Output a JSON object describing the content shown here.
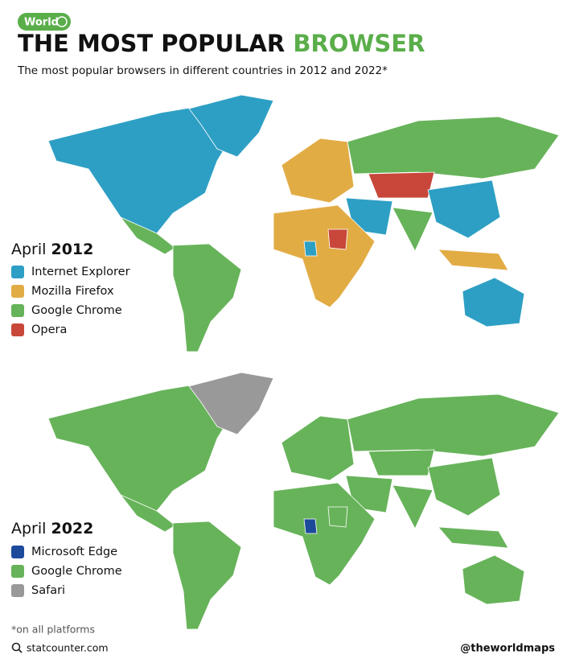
{
  "header": {
    "badge": "World",
    "title_main": "THE MOST POPULAR",
    "title_accent": "BROWSER",
    "accent_color": "#5aae4a",
    "subtitle": "The most popular browsers in different countries in 2012 and 2022*"
  },
  "maps": [
    {
      "legend_prefix": "April",
      "legend_year": "2012",
      "legend": [
        {
          "label": "Internet Explorer",
          "color": "#2e9fc4"
        },
        {
          "label": "Mozilla Firefox",
          "color": "#e2ac45"
        },
        {
          "label": "Google Chrome",
          "color": "#67b35a"
        },
        {
          "label": "Opera",
          "color": "#c8473a"
        }
      ]
    },
    {
      "legend_prefix": "April",
      "legend_year": "2022",
      "legend": [
        {
          "label": "Microsoft Edge",
          "color": "#1c4b9c"
        },
        {
          "label": "Google Chrome",
          "color": "#67b35a"
        },
        {
          "label": "Safari",
          "color": "#999999"
        }
      ]
    }
  ],
  "footer": {
    "note": "*on all platforms",
    "source": "statcounter.com",
    "credit": "@theworldmaps"
  }
}
